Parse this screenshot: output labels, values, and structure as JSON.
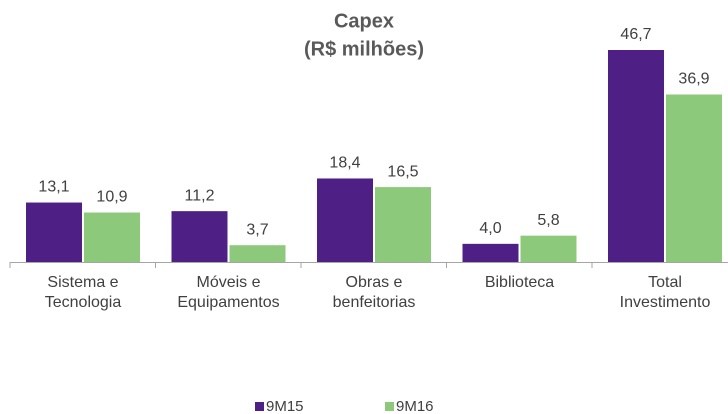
{
  "chart_data": {
    "type": "bar",
    "title": "Capex",
    "subtitle": "(R$ milhões)",
    "categories": [
      "Sistema e\nTecnologia",
      "Móveis e\nEquipamentos",
      "Obras e\nbenfeitorias",
      "Biblioteca",
      "Total\nInvestimento"
    ],
    "series": [
      {
        "name": "9M15",
        "color": "#4e1f84",
        "values": [
          13.1,
          11.2,
          18.4,
          4.0,
          46.7
        ],
        "value_labels": [
          "13,1",
          "11,2",
          "18,4",
          "4,0",
          "46,7"
        ]
      },
      {
        "name": "9M16",
        "color": "#8dc97b",
        "values": [
          10.9,
          3.7,
          16.5,
          5.8,
          36.9
        ],
        "value_labels": [
          "10,9",
          "3,7",
          "16,5",
          "5,8",
          "36,9"
        ]
      }
    ],
    "legend": "bottom"
  }
}
